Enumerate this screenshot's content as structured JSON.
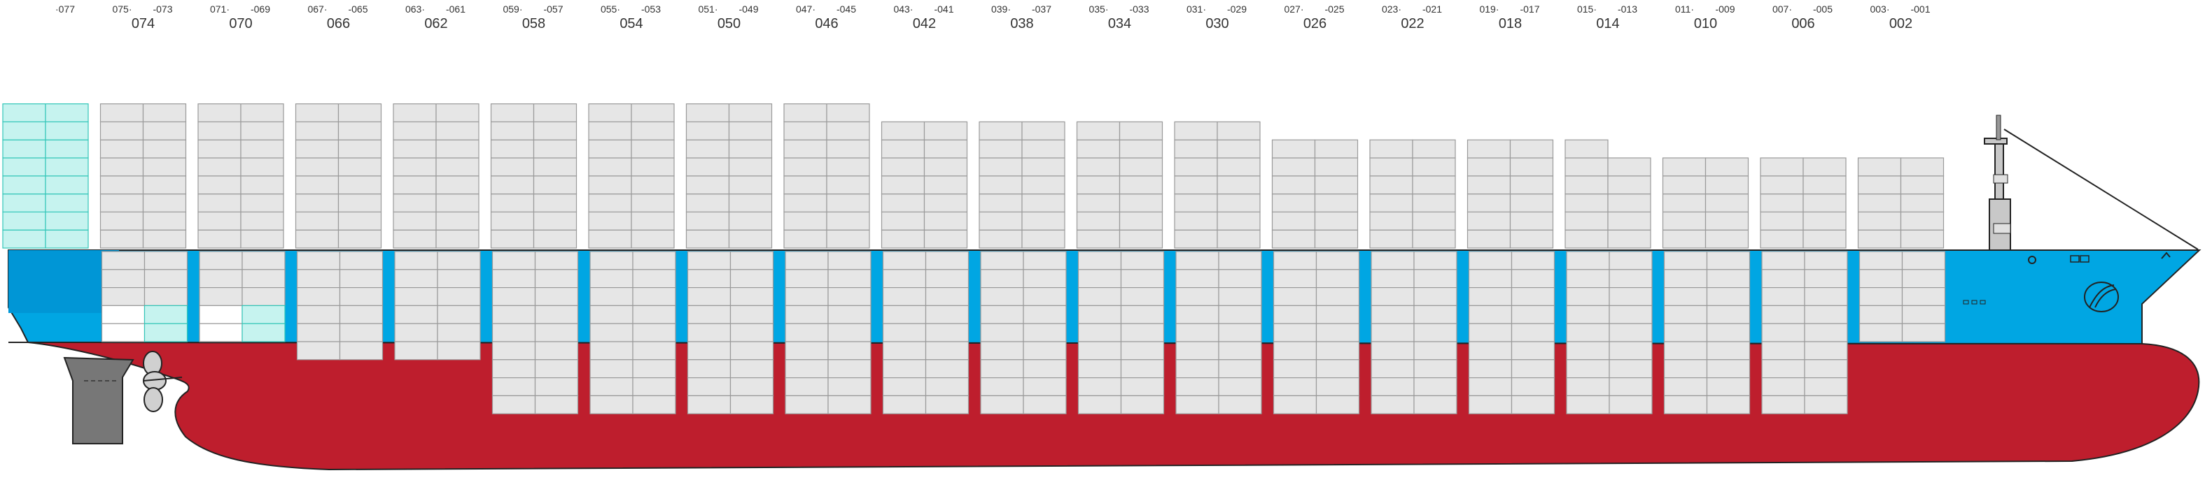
{
  "colors": {
    "hull_red": "#be1e2d",
    "deck_blue": "#00a6e3",
    "deck_blue_dark": "#0096d6",
    "container_fill": "#e6e6e6",
    "container_stroke": "#9a9a9a",
    "reefer_fill": "#c6f3ef",
    "reefer_stroke": "#33c6b8",
    "outline": "#222222",
    "rudder_gray": "#777777"
  },
  "icons": {
    "propeller": "propeller-icon",
    "rudder": "rudder-icon",
    "bridge": "bridge-tower-icon",
    "bow_logo": "company-logo-icon",
    "anchor": "anchor-icon",
    "portholes": "porthole-icon"
  },
  "bays": [
    {
      "main": "",
      "left": "",
      "right": "077"
    },
    {
      "main": "074",
      "left": "075",
      "right": "073"
    },
    {
      "main": "070",
      "left": "071",
      "right": "069"
    },
    {
      "main": "066",
      "left": "067",
      "right": "065"
    },
    {
      "main": "062",
      "left": "063",
      "right": "061"
    },
    {
      "main": "058",
      "left": "059",
      "right": "057"
    },
    {
      "main": "054",
      "left": "055",
      "right": "053"
    },
    {
      "main": "050",
      "left": "051",
      "right": "049"
    },
    {
      "main": "046",
      "left": "047",
      "right": "045"
    },
    {
      "main": "042",
      "left": "043",
      "right": "041"
    },
    {
      "main": "038",
      "left": "039",
      "right": "037"
    },
    {
      "main": "034",
      "left": "035",
      "right": "033"
    },
    {
      "main": "030",
      "left": "031",
      "right": "029"
    },
    {
      "main": "026",
      "left": "027",
      "right": "025"
    },
    {
      "main": "022",
      "left": "023",
      "right": "021"
    },
    {
      "main": "018",
      "left": "019",
      "right": "017"
    },
    {
      "main": "014",
      "left": "015",
      "right": "013"
    },
    {
      "main": "010",
      "left": "011",
      "right": "009"
    },
    {
      "main": "006",
      "left": "007",
      "right": "005"
    },
    {
      "main": "002",
      "left": "003",
      "right": "001"
    }
  ],
  "deck_tiers": [
    8,
    8,
    8,
    8,
    8,
    8,
    8,
    8,
    8,
    7,
    7,
    7,
    7,
    6,
    6,
    6,
    5,
    5,
    5,
    5
  ],
  "hold_tiers": [
    0,
    5,
    5,
    6,
    6,
    9,
    9,
    9,
    9,
    9,
    9,
    9,
    9,
    9,
    9,
    9,
    9,
    9,
    9,
    5
  ]
}
